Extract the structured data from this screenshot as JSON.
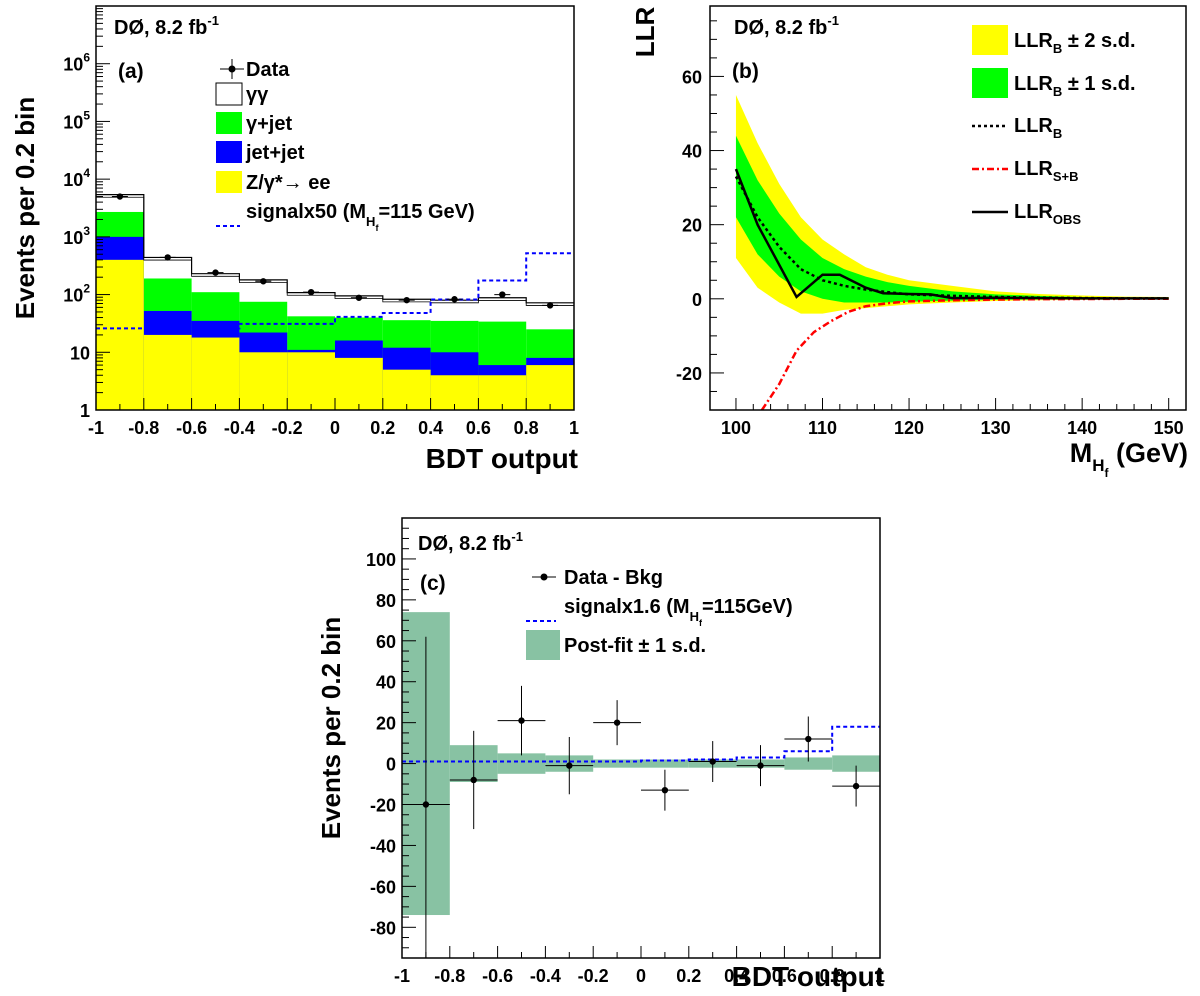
{
  "colors": {
    "yellow": "#ffff00",
    "green": "#00ff00",
    "blue": "#0000ff",
    "teal": "#88c2a3",
    "red": "#ff0000",
    "black": "#000000"
  },
  "chart_data": [
    {
      "id": "a",
      "type": "bar",
      "panel_label": "(a)",
      "experiment": {
        "main": "DØ, 8.2 fb",
        "sup": "-1"
      },
      "xlabel": "BDT output",
      "ylabel": "Events per 0.2 bin",
      "y_scale": "log",
      "xlim": [
        -1,
        1
      ],
      "ylim": [
        1,
        10000000
      ],
      "x_ticks": [
        "-1",
        "-0.8",
        "-0.6",
        "-0.4",
        "-0.2",
        "0",
        "0.2",
        "0.4",
        "0.6",
        "0.8",
        "1"
      ],
      "y_ticks": [
        {
          "base": "1",
          "exp": ""
        },
        {
          "base": "10",
          "exp": ""
        },
        {
          "base": "10",
          "exp": "2"
        },
        {
          "base": "10",
          "exp": "3"
        },
        {
          "base": "10",
          "exp": "4"
        },
        {
          "base": "10",
          "exp": "5"
        },
        {
          "base": "10",
          "exp": "6"
        }
      ],
      "bin_edges": [
        -1,
        -0.8,
        -0.6,
        -0.4,
        -0.2,
        0,
        0.2,
        0.4,
        0.6,
        0.8,
        1
      ],
      "stacked_cumulative": {
        "zee": [
          400,
          20,
          18,
          10,
          10,
          8,
          5,
          4,
          4,
          6
        ],
        "jet_jet": [
          1000,
          52,
          35,
          22,
          11,
          16,
          12,
          10,
          6,
          8
        ],
        "gamma_jet": [
          2700,
          190,
          110,
          75,
          42,
          40,
          36,
          35,
          34,
          25
        ],
        "gamma_gamma": [
          5400,
          440,
          230,
          180,
          108,
          95,
          83,
          80,
          88,
          72
        ]
      },
      "data": {
        "x": [
          -0.9,
          -0.7,
          -0.5,
          -0.3,
          -0.1,
          0.1,
          0.3,
          0.5,
          0.7,
          0.9
        ],
        "y": [
          5000,
          440,
          240,
          170,
          110,
          88,
          80,
          83,
          100,
          65
        ]
      },
      "signal": [
        26,
        26,
        26,
        31,
        31,
        41,
        48,
        82,
        175,
        520
      ],
      "legend": [
        {
          "label": "Data",
          "kind": "marker"
        },
        {
          "label": "γγ",
          "kind": "box"
        },
        {
          "label": "γ+jet",
          "kind": "fill_green"
        },
        {
          "label": "jet+jet",
          "kind": "fill_blue"
        },
        {
          "label": "Z/γ*→ ee",
          "kind": "fill_yellow"
        },
        {
          "label": "signalx50 (M",
          "sub": "H",
          "subsub": "f",
          "tail": "=115 GeV)",
          "kind": "dash_blue"
        }
      ]
    },
    {
      "id": "b",
      "type": "line",
      "panel_label": "(b)",
      "experiment": {
        "main": "DØ, 8.2 fb",
        "sup": "-1"
      },
      "ylabel": "LLR",
      "xlabel": {
        "main": "M",
        "sub": "H",
        "subsub": "f",
        "tail": " (GeV)"
      },
      "xlim": [
        97,
        152
      ],
      "ylim": [
        -30,
        79
      ],
      "x_ticks": [
        100,
        110,
        120,
        130,
        140,
        150
      ],
      "y_ticks": [
        -20,
        0,
        20,
        40,
        60
      ],
      "x": [
        100,
        102.5,
        105,
        107.5,
        110,
        112.5,
        115,
        117.5,
        120,
        125,
        130,
        135,
        140,
        145,
        150
      ],
      "llr_b": [
        33,
        22,
        14,
        8,
        5,
        3.5,
        2.5,
        1.8,
        1.2,
        0.8,
        0.5,
        0.3,
        0.2,
        0.1,
        0.1
      ],
      "band1_lo": [
        22,
        12,
        6,
        2,
        0,
        -1,
        -1,
        -1,
        -0.8,
        -0.5,
        -0.3,
        -0.2,
        -0.1,
        -0.1,
        0
      ],
      "band1_hi": [
        44,
        32,
        23,
        16,
        11,
        8,
        6,
        4.5,
        3.5,
        2,
        1.2,
        0.8,
        0.5,
        0.3,
        0.3
      ],
      "band2_lo": [
        11,
        3,
        -1,
        -4,
        -4,
        -3,
        -2.5,
        -2,
        -1.5,
        -1,
        -0.6,
        -0.4,
        -0.3,
        -0.2,
        -0.1
      ],
      "band2_hi": [
        55,
        42,
        31,
        22,
        16,
        12,
        8.5,
        6.5,
        5,
        3.5,
        2,
        1.3,
        0.9,
        0.6,
        0.5
      ],
      "llr_sb": {
        "x": [
          103,
          105,
          107,
          109,
          111,
          113,
          115,
          117.5,
          120,
          125,
          130,
          135,
          140,
          145,
          150
        ],
        "y": [
          -30,
          -23,
          -14,
          -9,
          -6,
          -3.5,
          -2,
          -1.2,
          -0.7,
          -0.4,
          -0.2,
          -0.1,
          -0.05,
          0,
          0
        ]
      },
      "llr_obs": {
        "x": [
          100,
          102.5,
          107,
          110,
          112,
          115,
          117,
          120,
          122.5,
          125,
          130,
          140,
          150
        ],
        "y": [
          35,
          20,
          0.5,
          6.5,
          6.5,
          3,
          1.5,
          1.3,
          1.2,
          0.2,
          0.3,
          0.1,
          0.1
        ]
      },
      "legend": [
        {
          "label": "LLR",
          "sub": "B",
          "tail": " ± 2 s.d.",
          "kind": "fill_yellow"
        },
        {
          "label": "LLR",
          "sub": "B",
          "tail": " ± 1 s.d.",
          "kind": "fill_green"
        },
        {
          "label": "LLR",
          "sub": "B",
          "tail": "",
          "kind": "dot_black"
        },
        {
          "label": "LLR",
          "sub": "S+B",
          "tail": "",
          "kind": "dashdot_red"
        },
        {
          "label": "LLR",
          "sub": "OBS",
          "tail": "",
          "kind": "solid_black"
        }
      ]
    },
    {
      "id": "c",
      "type": "bar",
      "panel_label": "(c)",
      "experiment": {
        "main": "DØ, 8.2 fb",
        "sup": "-1"
      },
      "xlabel": "BDT output",
      "ylabel": "Events per 0.2 bin",
      "xlim": [
        -1,
        1
      ],
      "ylim": [
        -95,
        120
      ],
      "x_ticks": [
        "-1",
        "-0.8",
        "-0.6",
        "-0.4",
        "-0.2",
        "0",
        "0.2",
        "0.4",
        "0.6",
        "0.8",
        "1"
      ],
      "y_ticks": [
        -80,
        -60,
        -40,
        -20,
        0,
        20,
        40,
        60,
        80,
        100
      ],
      "bin_edges": [
        -1,
        -0.8,
        -0.6,
        -0.4,
        -0.2,
        0,
        0.2,
        0.4,
        0.6,
        0.8,
        1
      ],
      "postfit_band": [
        74,
        9,
        5,
        4,
        2,
        2,
        2,
        2,
        3,
        4
      ],
      "signal": [
        1,
        1,
        1,
        1,
        1,
        1.5,
        2,
        3,
        6,
        18
      ],
      "data": {
        "x": [
          -0.9,
          -0.7,
          -0.5,
          -0.3,
          -0.1,
          0.1,
          0.3,
          0.5,
          0.7,
          0.9
        ],
        "y": [
          -20,
          -8,
          21,
          -1,
          20,
          -13,
          1,
          -1,
          12,
          -11
        ],
        "err": [
          82,
          24,
          17,
          14,
          11,
          10,
          10,
          10,
          11,
          10
        ]
      },
      "legend": [
        {
          "label": "Data - Bkg",
          "kind": "marker"
        },
        {
          "label": "signalx1.6 (M",
          "sub": "H",
          "subsub": "f",
          "tail": "=115GeV)",
          "kind": "dash_blue"
        },
        {
          "label": "Post-fit ± 1 s.d.",
          "kind": "fill_teal"
        }
      ]
    }
  ]
}
